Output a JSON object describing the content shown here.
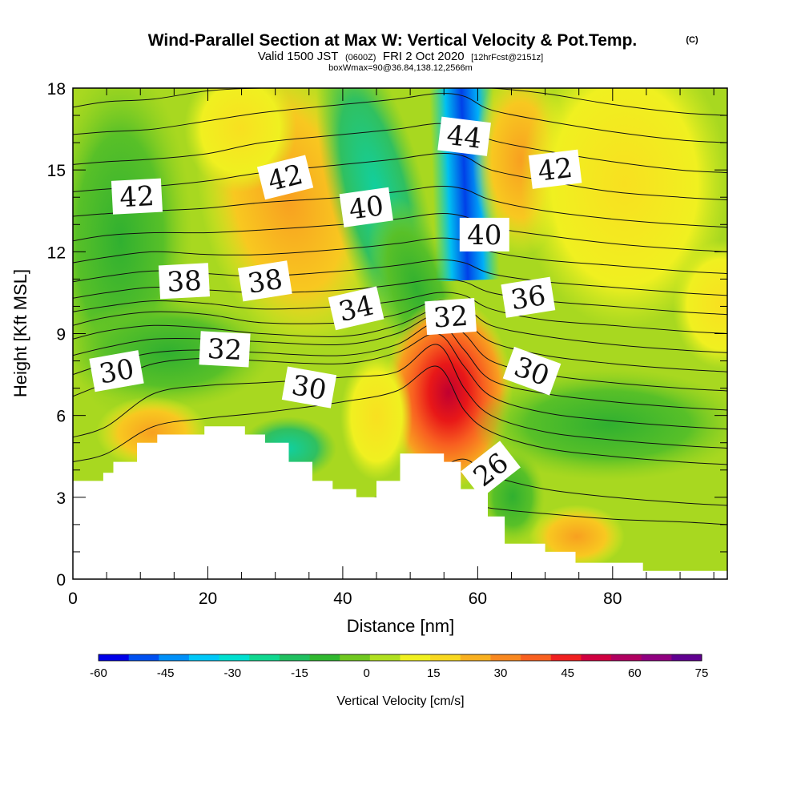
{
  "header": {
    "title": "Wind-Parallel Section at Max W: Vertical Velocity & Pot.Temp.",
    "copyright": "(C)",
    "subtitle_main": "Valid 1500 JST",
    "subtitle_utc": "(0600Z)",
    "subtitle_date": "FRI 2 Oct 2020",
    "subtitle_fcst": "[12hrFcst@2151z]",
    "subtitle_box": "boxWmax=90@36.84,138.12,2566m"
  },
  "chart_data": {
    "type": "heatmap",
    "xlabel": "Distance [nm]",
    "ylabel": "Height [Kft MSL]",
    "xlim": [
      0,
      97
    ],
    "ylim": [
      0,
      18
    ],
    "x_ticks": [
      "0",
      "20",
      "40",
      "60",
      "80"
    ],
    "y_ticks": [
      "0",
      "3",
      "6",
      "9",
      "12",
      "15",
      "18"
    ],
    "colorbar": {
      "title": "Vertical Velocity [cm/s]",
      "min": -60,
      "max": 75,
      "step": 7.5,
      "tick_labels": [
        "-60",
        "-45",
        "-30",
        "-15",
        "0",
        "15",
        "30",
        "45",
        "60",
        "75"
      ],
      "colors": [
        "#0000e8",
        "#0050f0",
        "#0090f8",
        "#00c8f8",
        "#00e0d0",
        "#10d890",
        "#20c060",
        "#30b830",
        "#70c820",
        "#b0e020",
        "#f0f020",
        "#f8d820",
        "#f8b020",
        "#f88820",
        "#f86020",
        "#f02020",
        "#d00040",
        "#b00060",
        "#900080",
        "#600090"
      ]
    },
    "terrain_profile": [
      {
        "x": 0,
        "y": 3.6
      },
      {
        "x": 4.5,
        "y": 3.6
      },
      {
        "x": 4.5,
        "y": 3.9
      },
      {
        "x": 6,
        "y": 3.9
      },
      {
        "x": 6,
        "y": 4.3
      },
      {
        "x": 9.5,
        "y": 4.3
      },
      {
        "x": 9.5,
        "y": 5.0
      },
      {
        "x": 12.5,
        "y": 5.0
      },
      {
        "x": 12.5,
        "y": 5.3
      },
      {
        "x": 19.5,
        "y": 5.3
      },
      {
        "x": 19.5,
        "y": 5.6
      },
      {
        "x": 25.5,
        "y": 5.6
      },
      {
        "x": 25.5,
        "y": 5.3
      },
      {
        "x": 28.5,
        "y": 5.3
      },
      {
        "x": 28.5,
        "y": 5.0
      },
      {
        "x": 32,
        "y": 5.0
      },
      {
        "x": 32,
        "y": 4.3
      },
      {
        "x": 35.5,
        "y": 4.3
      },
      {
        "x": 35.5,
        "y": 3.6
      },
      {
        "x": 38.5,
        "y": 3.6
      },
      {
        "x": 38.5,
        "y": 3.3
      },
      {
        "x": 42,
        "y": 3.3
      },
      {
        "x": 42,
        "y": 3.0
      },
      {
        "x": 45,
        "y": 3.0
      },
      {
        "x": 45,
        "y": 3.6
      },
      {
        "x": 48.5,
        "y": 3.6
      },
      {
        "x": 48.5,
        "y": 4.6
      },
      {
        "x": 55,
        "y": 4.6
      },
      {
        "x": 55,
        "y": 4.3
      },
      {
        "x": 57.5,
        "y": 4.3
      },
      {
        "x": 57.5,
        "y": 3.3
      },
      {
        "x": 61.5,
        "y": 3.3
      },
      {
        "x": 61.5,
        "y": 2.3
      },
      {
        "x": 64,
        "y": 2.3
      },
      {
        "x": 64,
        "y": 1.3
      },
      {
        "x": 70,
        "y": 1.3
      },
      {
        "x": 70,
        "y": 1.0
      },
      {
        "x": 74.5,
        "y": 1.0
      },
      {
        "x": 74.5,
        "y": 0.6
      },
      {
        "x": 84.5,
        "y": 0.6
      },
      {
        "x": 84.5,
        "y": 0.3
      },
      {
        "x": 97,
        "y": 0.3
      }
    ],
    "contour_labels": [
      {
        "text": "42",
        "x": 9.5,
        "y": 14.0,
        "angle": -3
      },
      {
        "text": "42",
        "x": 31.5,
        "y": 14.7,
        "angle": -14
      },
      {
        "text": "40",
        "x": 43.5,
        "y": 13.6,
        "angle": -8
      },
      {
        "text": "44",
        "x": 58,
        "y": 16.2,
        "angle": 7
      },
      {
        "text": "42",
        "x": 71.5,
        "y": 15.0,
        "angle": -7
      },
      {
        "text": "40",
        "x": 61,
        "y": 12.6,
        "angle": 0
      },
      {
        "text": "38",
        "x": 16.5,
        "y": 10.9,
        "angle": -3
      },
      {
        "text": "38",
        "x": 28.5,
        "y": 10.9,
        "angle": -9
      },
      {
        "text": "34",
        "x": 42,
        "y": 9.9,
        "angle": -13
      },
      {
        "text": "32",
        "x": 56,
        "y": 9.6,
        "angle": -4
      },
      {
        "text": "36",
        "x": 67.5,
        "y": 10.3,
        "angle": -9
      },
      {
        "text": "32",
        "x": 22.5,
        "y": 8.4,
        "angle": 3
      },
      {
        "text": "30",
        "x": 6.5,
        "y": 7.6,
        "angle": -10
      },
      {
        "text": "30",
        "x": 35,
        "y": 7.0,
        "angle": 10
      },
      {
        "text": "30",
        "x": 68,
        "y": 7.6,
        "angle": 20
      },
      {
        "text": "26",
        "x": 62,
        "y": 4.0,
        "angle": -38
      }
    ],
    "contours": [
      {
        "x": [
          0,
          5,
          12,
          20,
          28,
          40,
          48,
          54,
          58,
          62,
          70,
          80,
          90,
          97
        ],
        "y": [
          0.7,
          0.9,
          1.2,
          1.4,
          1.6,
          1.8,
          2.0,
          2.6,
          2.8,
          2.6,
          2.4,
          2.2,
          2.1,
          2.0
        ]
      },
      {
        "x": [
          0,
          5,
          12,
          20,
          28,
          40,
          48,
          54,
          58,
          62,
          70,
          80,
          90,
          97
        ],
        "y": [
          1.4,
          1.6,
          2.0,
          2.3,
          2.5,
          2.8,
          3.2,
          4.0,
          4.4,
          3.8,
          3.3,
          3.0,
          2.8,
          2.7
        ]
      },
      {
        "x": [
          0,
          5,
          12,
          20,
          28,
          40,
          48,
          54,
          58,
          62,
          70,
          80,
          90,
          97
        ],
        "y": [
          4.3,
          4.6,
          5.6,
          5.9,
          6.1,
          6.5,
          6.9,
          7.8,
          6.2,
          5.4,
          4.8,
          4.5,
          4.3,
          4.2
        ]
      },
      {
        "x": [
          0,
          5,
          12,
          20,
          28,
          40,
          48,
          54,
          58,
          62,
          70,
          80,
          90,
          97
        ],
        "y": [
          5.2,
          5.6,
          6.8,
          7.1,
          7.2,
          7.4,
          7.6,
          8.6,
          7.0,
          6.0,
          5.4,
          5.1,
          4.9,
          4.8
        ]
      },
      {
        "x": [
          0,
          5,
          12,
          20,
          28,
          40,
          48,
          54,
          58,
          62,
          70,
          80,
          90,
          97
        ],
        "y": [
          6.7,
          7.2,
          7.9,
          8.1,
          8.0,
          7.9,
          8.3,
          9.0,
          7.8,
          6.7,
          6.1,
          5.8,
          5.6,
          5.5
        ]
      },
      {
        "x": [
          0,
          5,
          12,
          20,
          28,
          40,
          48,
          54,
          58,
          62,
          70,
          80,
          90,
          97
        ],
        "y": [
          7.5,
          7.9,
          8.3,
          8.4,
          8.3,
          8.2,
          8.6,
          9.4,
          8.4,
          7.3,
          6.8,
          6.5,
          6.3,
          6.2
        ]
      },
      {
        "x": [
          0,
          5,
          12,
          20,
          28,
          40,
          48,
          54,
          58,
          62,
          70,
          80,
          90,
          97
        ],
        "y": [
          8.2,
          8.5,
          8.8,
          8.8,
          8.7,
          8.6,
          9.0,
          9.7,
          9.0,
          8.0,
          7.5,
          7.2,
          7.0,
          6.9
        ]
      },
      {
        "x": [
          0,
          5,
          12,
          20,
          28,
          40,
          48,
          54,
          58,
          62,
          70,
          80,
          90,
          97
        ],
        "y": [
          8.8,
          9.1,
          9.3,
          9.2,
          9.0,
          8.9,
          9.3,
          9.9,
          9.5,
          8.7,
          8.2,
          7.9,
          7.7,
          7.6
        ]
      },
      {
        "x": [
          0,
          5,
          12,
          20,
          28,
          40,
          48,
          54,
          58,
          62,
          70,
          80,
          90,
          97
        ],
        "y": [
          9.3,
          9.6,
          9.8,
          9.7,
          9.4,
          9.4,
          9.7,
          10.2,
          10.0,
          9.3,
          8.9,
          8.6,
          8.4,
          8.3
        ]
      },
      {
        "x": [
          0,
          5,
          12,
          20,
          28,
          40,
          48,
          54,
          58,
          62,
          70,
          80,
          90,
          97
        ],
        "y": [
          9.8,
          10.0,
          10.2,
          10.1,
          9.9,
          10.0,
          10.2,
          10.5,
          10.4,
          9.9,
          9.5,
          9.3,
          9.1,
          9.0
        ]
      },
      {
        "x": [
          0,
          5,
          12,
          20,
          28,
          40,
          48,
          54,
          58,
          62,
          70,
          80,
          90,
          97
        ],
        "y": [
          10.3,
          10.5,
          10.7,
          10.6,
          10.5,
          10.6,
          10.8,
          11.0,
          10.9,
          10.5,
          10.2,
          10.0,
          9.8,
          9.7
        ]
      },
      {
        "x": [
          0,
          5,
          12,
          20,
          28,
          40,
          48,
          54,
          58,
          62,
          70,
          80,
          90,
          97
        ],
        "y": [
          10.9,
          11.1,
          11.3,
          11.2,
          11.1,
          11.3,
          11.5,
          11.7,
          11.6,
          11.2,
          10.9,
          10.7,
          10.5,
          10.4
        ]
      },
      {
        "x": [
          0,
          5,
          12,
          20,
          28,
          40,
          48,
          54,
          58,
          62,
          70,
          80,
          90,
          97
        ],
        "y": [
          11.6,
          11.8,
          12.0,
          11.9,
          11.9,
          12.1,
          12.3,
          12.5,
          12.4,
          12.0,
          11.7,
          11.5,
          11.3,
          11.2
        ]
      },
      {
        "x": [
          0,
          5,
          12,
          20,
          28,
          40,
          48,
          54,
          58,
          62,
          70,
          80,
          90,
          97
        ],
        "y": [
          12.4,
          12.6,
          12.7,
          12.7,
          12.8,
          13.0,
          13.2,
          13.4,
          13.3,
          12.9,
          12.6,
          12.3,
          12.1,
          12.0
        ]
      },
      {
        "x": [
          0,
          5,
          12,
          20,
          28,
          40,
          48,
          54,
          58,
          62,
          70,
          80,
          90,
          97
        ],
        "y": [
          13.3,
          13.4,
          13.5,
          13.6,
          13.8,
          14.0,
          14.2,
          14.4,
          14.3,
          13.9,
          13.5,
          13.2,
          13.0,
          12.9
        ]
      },
      {
        "x": [
          0,
          5,
          12,
          20,
          28,
          40,
          48,
          54,
          58,
          62,
          70,
          80,
          90,
          97
        ],
        "y": [
          14.2,
          14.3,
          14.4,
          14.6,
          14.9,
          15.2,
          15.4,
          15.6,
          15.5,
          15.0,
          14.6,
          14.2,
          14.0,
          13.9
        ]
      },
      {
        "x": [
          0,
          5,
          12,
          20,
          28,
          40,
          48,
          54,
          58,
          62,
          70,
          80,
          90,
          97
        ],
        "y": [
          15.2,
          15.3,
          15.4,
          15.6,
          16.0,
          16.3,
          16.5,
          16.7,
          16.6,
          16.1,
          15.7,
          15.3,
          15.0,
          14.9
        ]
      },
      {
        "x": [
          0,
          5,
          12,
          20,
          28,
          40,
          48,
          54,
          58,
          62,
          70,
          80,
          90,
          97
        ],
        "y": [
          16.3,
          16.4,
          16.5,
          16.8,
          17.1,
          17.4,
          17.6,
          17.8,
          17.7,
          17.2,
          16.8,
          16.4,
          16.1,
          16.0
        ]
      },
      {
        "x": [
          0,
          5,
          12,
          20,
          28,
          40,
          48,
          54,
          58,
          62,
          70,
          80,
          90,
          97
        ],
        "y": [
          17.3,
          17.5,
          17.6,
          17.9,
          18.0,
          18.0,
          18.0,
          18.0,
          18.0,
          18.0,
          17.8,
          17.4,
          17.1,
          17.0
        ]
      }
    ]
  }
}
